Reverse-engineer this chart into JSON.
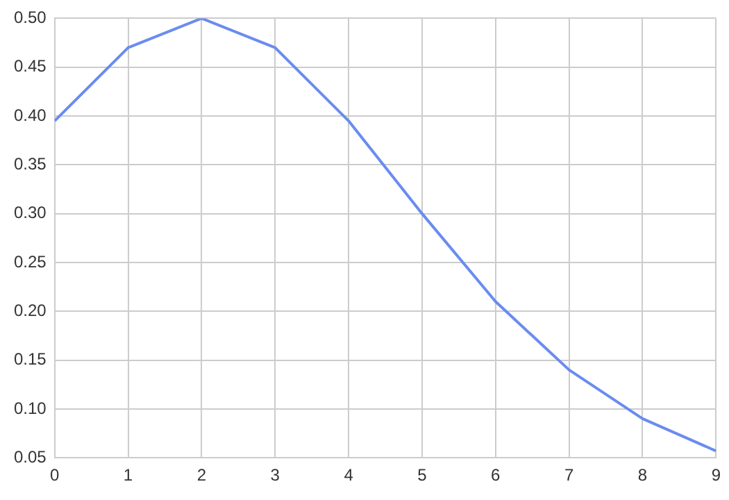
{
  "chart_data": {
    "type": "line",
    "x": [
      0,
      1,
      2,
      3,
      4,
      5,
      6,
      7,
      8,
      9
    ],
    "series": [
      {
        "color": "#6a8cf0",
        "values": [
          0.395,
          0.47,
          0.5,
          0.47,
          0.395,
          0.3,
          0.21,
          0.14,
          0.09,
          0.057
        ]
      }
    ],
    "xlim": [
      0,
      9
    ],
    "xticks": [
      0,
      1,
      2,
      3,
      4,
      5,
      6,
      7,
      8,
      9
    ],
    "ylim": [
      0.05,
      0.5
    ],
    "yticks": [
      {
        "value": 0.05,
        "label": "0.05"
      },
      {
        "value": 0.1,
        "label": "0.10"
      },
      {
        "value": 0.15,
        "label": "0.15"
      },
      {
        "value": 0.2,
        "label": "0.20"
      },
      {
        "value": 0.25,
        "label": "0.25"
      },
      {
        "value": 0.3,
        "label": "0.30"
      },
      {
        "value": 0.35,
        "label": "0.35"
      },
      {
        "value": 0.4,
        "label": "0.40"
      },
      {
        "value": 0.45,
        "label": "0.45"
      },
      {
        "value": 0.5,
        "label": "0.50"
      }
    ],
    "grid": true,
    "marker": "none",
    "line_style": "solid",
    "legend": false
  }
}
